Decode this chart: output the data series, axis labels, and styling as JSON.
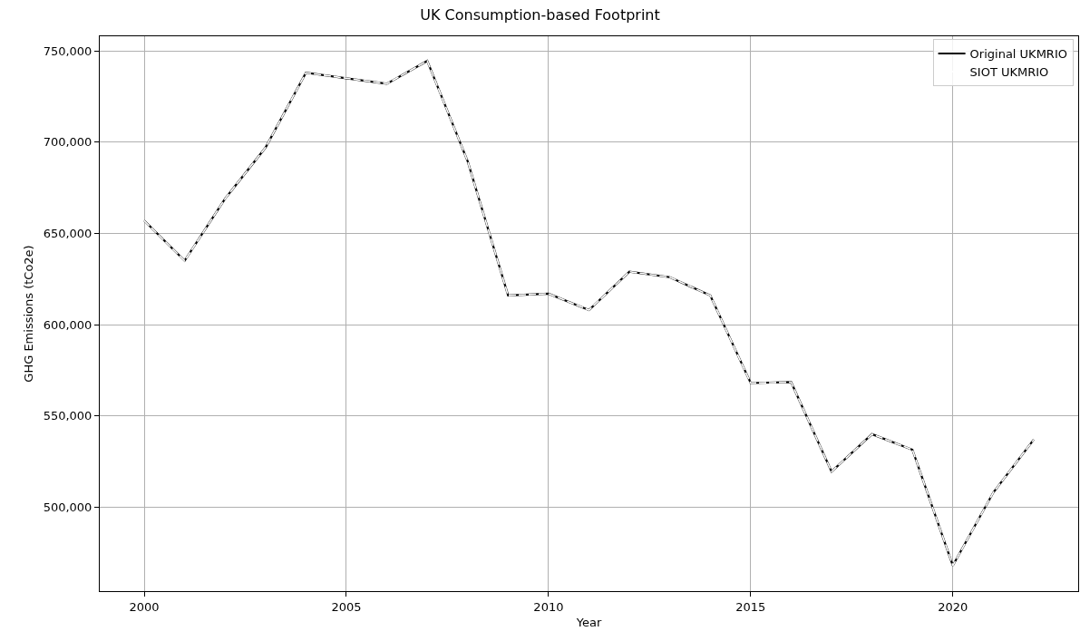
{
  "chart_data": {
    "type": "line",
    "title": "UK Consumption-based Footprint",
    "xlabel": "Year",
    "ylabel": "GHG Emissions (tCo2e)",
    "x": [
      2000,
      2001,
      2002,
      2003,
      2004,
      2005,
      2006,
      2007,
      2008,
      2009,
      2010,
      2011,
      2012,
      2013,
      2014,
      2015,
      2016,
      2017,
      2018,
      2019,
      2020,
      2021,
      2022
    ],
    "series": [
      {
        "name": "Original UKMRIO",
        "color": "#000000",
        "line_style": "solid",
        "values": [
          657000,
          635000,
          669000,
          697000,
          738000,
          735000,
          732000,
          744500,
          689500,
          616000,
          617000,
          608000,
          629000,
          626000,
          616000,
          568000,
          568500,
          519500,
          540000,
          531500,
          468000,
          508000,
          537000
        ]
      },
      {
        "name": "SIOT UKMRIO",
        "color": "#ffffff",
        "line_style": "dashed",
        "values": [
          657000,
          635000,
          669000,
          697000,
          738000,
          735000,
          732000,
          744500,
          689500,
          616000,
          617000,
          608000,
          629000,
          626000,
          616000,
          568000,
          568500,
          519500,
          540000,
          531500,
          468000,
          508000,
          537000
        ]
      }
    ],
    "xlim": [
      1998.9,
      2023.1
    ],
    "xticks": [
      2000,
      2005,
      2010,
      2015,
      2020
    ],
    "ylim": [
      454000,
      758000
    ],
    "yticks": [
      {
        "value": 500000,
        "label": "500,000"
      },
      {
        "value": 550000,
        "label": "550,000"
      },
      {
        "value": 600000,
        "label": "600,000"
      },
      {
        "value": 650000,
        "label": "650,000"
      },
      {
        "value": 700000,
        "label": "700,000"
      },
      {
        "value": 750000,
        "label": "750,000"
      }
    ],
    "grid": true,
    "legend": "top right",
    "marker": "none"
  }
}
